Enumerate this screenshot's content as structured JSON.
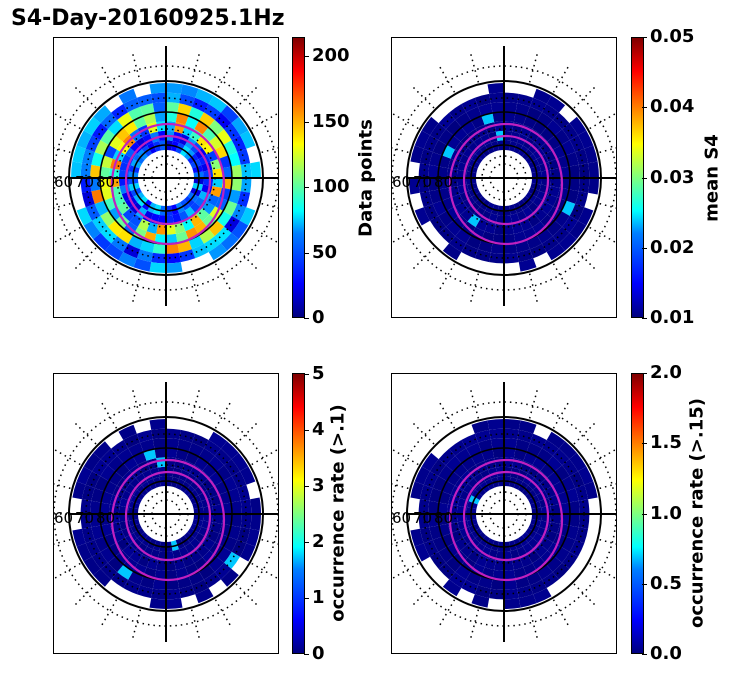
{
  "title": "S4-Day-20160925.1Hz",
  "chart_data": [
    {
      "type": "heatmap",
      "projection": "polar",
      "title": "S4-Day-20160925.1Hz",
      "lat_ring_labels": [
        "60",
        "70",
        "80"
      ],
      "colorbar": {
        "label": "Data points",
        "ticks": [
          "0",
          "50",
          "100",
          "150",
          "200"
        ],
        "range": [
          0,
          215
        ]
      },
      "field": "data_points",
      "intensity": 0.45
    },
    {
      "type": "heatmap",
      "projection": "polar",
      "lat_ring_labels": [
        "60",
        "70",
        "80"
      ],
      "colorbar": {
        "label": "mean S4",
        "ticks": [
          "0.01",
          "0.02",
          "0.03",
          "0.04",
          "0.05"
        ],
        "range": [
          0.01,
          0.05
        ]
      },
      "field": "mean_s4",
      "intensity": 0.02
    },
    {
      "type": "heatmap",
      "projection": "polar",
      "lat_ring_labels": [
        "60",
        "70",
        "80"
      ],
      "colorbar": {
        "label": "occurrence rate (>.1)",
        "ticks": [
          "0",
          "1",
          "2",
          "3",
          "4",
          "5"
        ],
        "range": [
          0,
          5
        ]
      },
      "field": "occurrence_rate_gt_0.1",
      "intensity": 0.02
    },
    {
      "type": "heatmap",
      "projection": "polar",
      "lat_ring_labels": [
        "60",
        "70",
        "80"
      ],
      "colorbar": {
        "label": "occurrence rate (>.15)",
        "ticks": [
          "0.0",
          "0.5",
          "1.0",
          "1.5",
          "2.0"
        ],
        "range": [
          0,
          2
        ]
      },
      "field": "occurrence_rate_gt_0.15",
      "intensity": 0.02
    }
  ]
}
